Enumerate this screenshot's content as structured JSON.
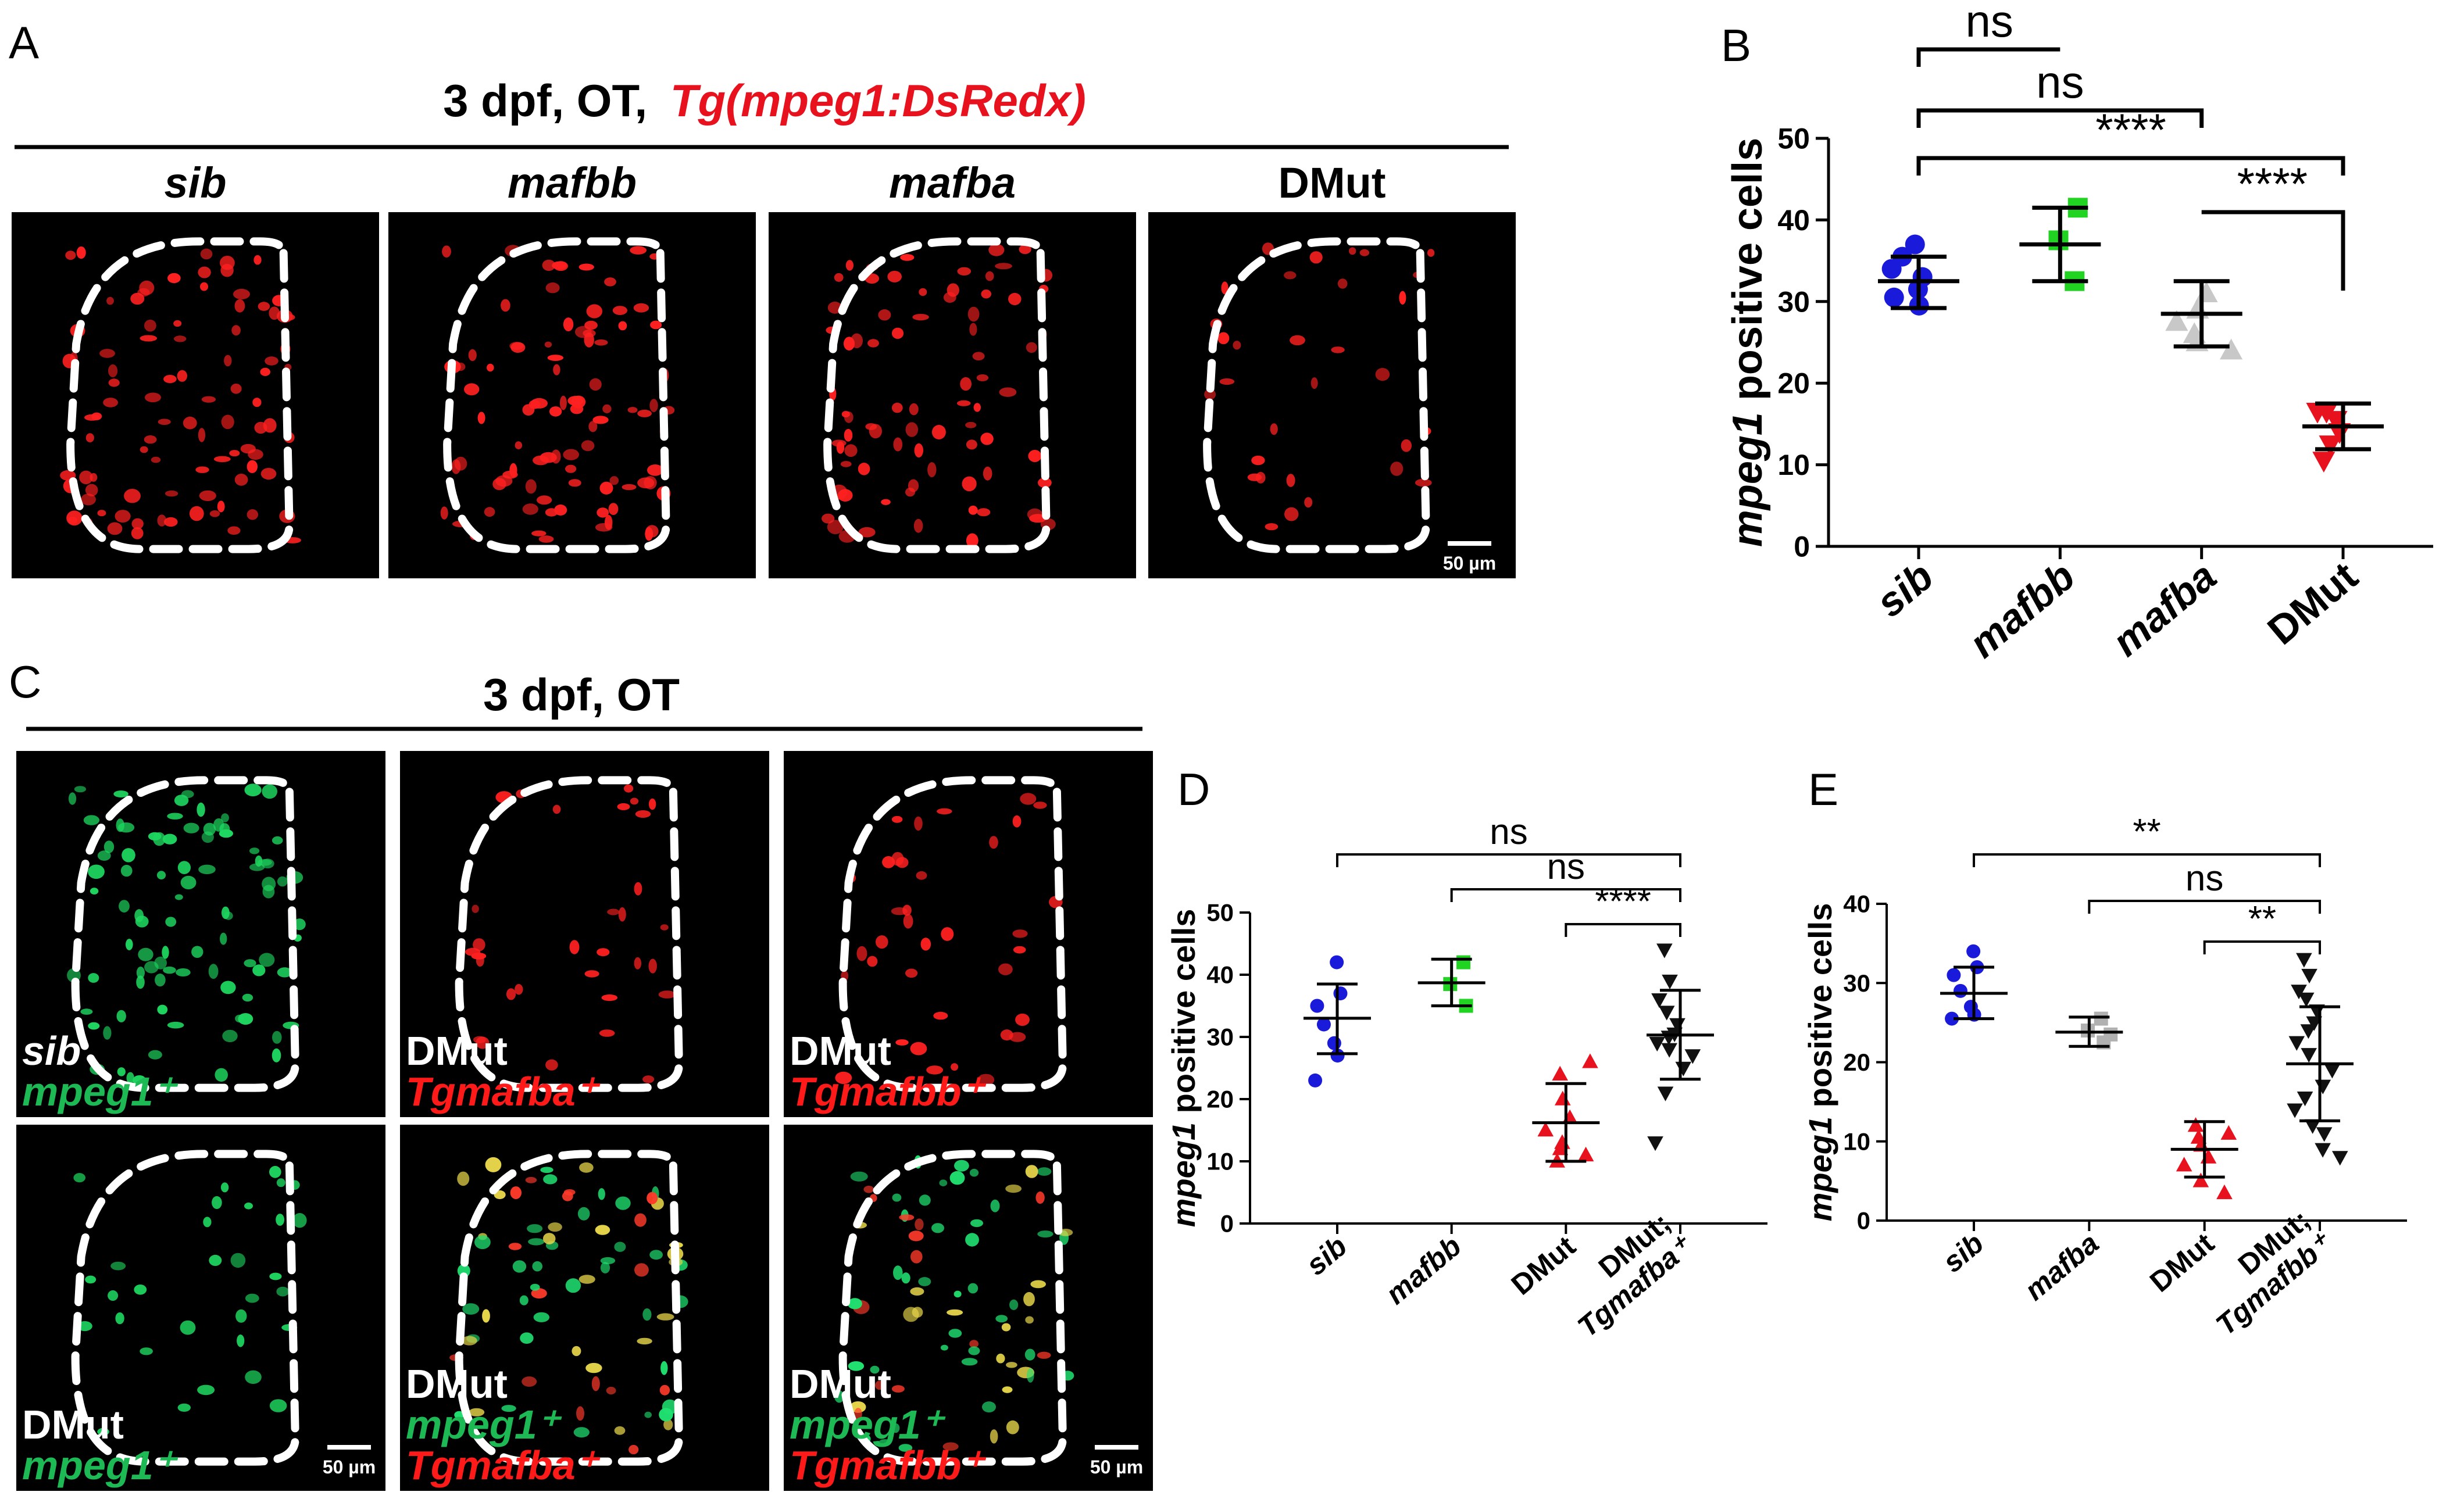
{
  "panel_a": {
    "letter": "A",
    "header_plain": "3 dpf, OT,",
    "header_red": "Tg(mpeg1:DsRedx)",
    "images": [
      {
        "label": "sib",
        "italic": true,
        "color": "#ff1a1a",
        "density": 1.0
      },
      {
        "label": "mafbb",
        "italic": true,
        "color": "#ff1a1a",
        "density": 1.0
      },
      {
        "label": "mafba",
        "italic": true,
        "color": "#ff1a1a",
        "density": 0.85
      },
      {
        "label": "DMut",
        "italic": false,
        "color": "#ff1a1a",
        "density": 0.35
      }
    ],
    "scale_bar": "50 µm"
  },
  "panel_c": {
    "letter": "C",
    "header": "3 dpf, OT",
    "images": [
      {
        "lines": [
          {
            "text": "sib",
            "color": "#ffffff",
            "italic": true
          },
          {
            "text": "mpeg1⁺",
            "color": "#1db954",
            "italic": true
          }
        ],
        "channel": "green",
        "density": 1.0
      },
      {
        "lines": [
          {
            "text": "DMut",
            "color": "#ffffff",
            "italic": false
          },
          {
            "text": "Tgmafba⁺",
            "color": "#ff1a1a",
            "italic": true
          }
        ],
        "channel": "red",
        "density": 0.35
      },
      {
        "lines": [
          {
            "text": "DMut",
            "color": "#ffffff",
            "italic": false
          },
          {
            "text": "Tgmafbb⁺",
            "color": "#ff1a1a",
            "italic": true
          }
        ],
        "channel": "red",
        "density": 0.4
      },
      {
        "lines": [
          {
            "text": "DMut",
            "color": "#ffffff",
            "italic": false
          },
          {
            "text": "mpeg1⁺",
            "color": "#1db954",
            "italic": true
          }
        ],
        "channel": "green",
        "density": 0.35
      },
      {
        "lines": [
          {
            "text": "DMut",
            "color": "#ffffff",
            "italic": false
          },
          {
            "text": "mpeg1⁺",
            "color": "#1db954",
            "italic": true
          },
          {
            "text": "Tgmafba⁺",
            "color": "#ff1a1a",
            "italic": true
          }
        ],
        "channel": "merge",
        "density": 0.8
      },
      {
        "lines": [
          {
            "text": "DMut",
            "color": "#ffffff",
            "italic": false
          },
          {
            "text": "mpeg1⁺",
            "color": "#1db954",
            "italic": true
          },
          {
            "text": "Tgmafbb⁺",
            "color": "#ff1a1a",
            "italic": true
          }
        ],
        "channel": "merge",
        "density": 0.8
      }
    ],
    "scale_bar": "50 µm"
  },
  "chart_data": [
    {
      "panel": "B",
      "type": "scatter",
      "ylabel_italic": "mpeg1",
      "ylabel_rest": " positive cells",
      "ylim": [
        0,
        50
      ],
      "yticks": [
        0,
        10,
        20,
        30,
        40,
        50
      ],
      "categories": [
        {
          "label": "sib",
          "italic": true,
          "color": "#1a1adb",
          "marker": "circle",
          "points": [
            31.5,
            33,
            30.5,
            35.5,
            37,
            29.5,
            34
          ],
          "mean": 32.5,
          "sd_low": 29.2,
          "sd_high": 35.5
        },
        {
          "label": "mafbb",
          "italic": true,
          "color": "#22d422",
          "marker": "square",
          "points": [
            32.5,
            37.5,
            41.5
          ],
          "mean": 37,
          "sd_low": 32.5,
          "sd_high": 41.5
        },
        {
          "label": "mafba",
          "italic": true,
          "color": "#c8c8c8",
          "marker": "triangle-up",
          "points": [
            24,
            26,
            29,
            31,
            27.5,
            25
          ],
          "mean": 28.5,
          "sd_low": 24.5,
          "sd_high": 32.5
        },
        {
          "label": "DMut",
          "italic": false,
          "color": "#e8121e",
          "marker": "triangle-down",
          "points": [
            10.5,
            12.5,
            16.5,
            16.5,
            14,
            15.5
          ],
          "mean": 14.7,
          "sd_low": 11.9,
          "sd_high": 17.5
        }
      ],
      "comparisons": [
        {
          "from": 0,
          "to": 1,
          "label": "ns"
        },
        {
          "from": 0,
          "to": 2,
          "label": "ns"
        },
        {
          "from": 0,
          "to": 3,
          "label": "****"
        },
        {
          "from": 2,
          "to": 3,
          "label": "****"
        }
      ]
    },
    {
      "panel": "D",
      "type": "scatter",
      "ylabel_italic": "mpeg1",
      "ylabel_rest": " positive cells",
      "ylim": [
        0,
        50
      ],
      "yticks": [
        0,
        10,
        20,
        30,
        40,
        50
      ],
      "categories": [
        {
          "label": "sib",
          "italic": true,
          "color": "#1a1adb",
          "marker": "circle",
          "points": [
            42,
            37,
            35,
            32,
            29,
            27,
            23
          ],
          "mean": 33,
          "sd_low": 27.3,
          "sd_high": 38.5
        },
        {
          "label": "mafbb",
          "italic": true,
          "color": "#22d422",
          "marker": "square",
          "points": [
            42,
            38.5,
            35
          ],
          "mean": 38.7,
          "sd_low": 35,
          "sd_high": 42.5
        },
        {
          "label": "DMut",
          "italic": false,
          "color": "#e8121e",
          "marker": "triangle-up",
          "points": [
            26,
            24,
            20,
            17,
            15,
            13,
            11,
            10,
            12
          ],
          "mean": 16.2,
          "sd_low": 10,
          "sd_high": 22.5
        },
        {
          "label": "DMut;",
          "label2": "Tgmafba⁺",
          "italic": false,
          "color": "#111111",
          "marker": "triangle-down",
          "points": [
            44,
            39,
            36,
            34,
            32,
            30.5,
            30,
            29,
            28,
            27,
            25,
            21,
            13
          ],
          "mean": 30.3,
          "sd_low": 23.2,
          "sd_high": 37.5
        }
      ],
      "comparisons": [
        {
          "from": 0,
          "to": 3,
          "label": "ns"
        },
        {
          "from": 1,
          "to": 3,
          "label": "ns"
        },
        {
          "from": 2,
          "to": 3,
          "label": "****"
        }
      ]
    },
    {
      "panel": "E",
      "type": "scatter",
      "ylabel_italic": "mpeg1",
      "ylabel_rest": " positive cells",
      "ylim": [
        0,
        40
      ],
      "yticks": [
        0,
        10,
        20,
        30,
        40
      ],
      "categories": [
        {
          "label": "sib",
          "italic": true,
          "color": "#1a1adb",
          "marker": "circle",
          "points": [
            34,
            32,
            31,
            29,
            27,
            26,
            25.5
          ],
          "mean": 28.7,
          "sd_low": 25.5,
          "sd_high": 32
        },
        {
          "label": "mafba",
          "italic": true,
          "color": "#b0b0b0",
          "marker": "square",
          "points": [
            25.5,
            24,
            22.5,
            23.5
          ],
          "mean": 23.8,
          "sd_low": 22,
          "sd_high": 25.7
        },
        {
          "label": "DMut",
          "italic": false,
          "color": "#e8121e",
          "marker": "triangle-up",
          "points": [
            11,
            10.5,
            9.5,
            8,
            7,
            5,
            3.5,
            12
          ],
          "mean": 9,
          "sd_low": 5.5,
          "sd_high": 12.5
        },
        {
          "label": "DMut;",
          "label2": "Tgmafbb⁺",
          "italic": false,
          "color": "#111111",
          "marker": "triangle-down",
          "points": [
            33,
            31,
            29,
            28,
            26.5,
            25,
            24,
            22.5,
            21,
            19,
            17,
            15.5,
            14,
            12,
            11,
            9,
            8
          ],
          "mean": 19.8,
          "sd_low": 12.6,
          "sd_high": 27
        }
      ],
      "comparisons": [
        {
          "from": 0,
          "to": 3,
          "label": "**"
        },
        {
          "from": 1,
          "to": 3,
          "label": "ns"
        },
        {
          "from": 2,
          "to": 3,
          "label": "**"
        }
      ]
    }
  ]
}
